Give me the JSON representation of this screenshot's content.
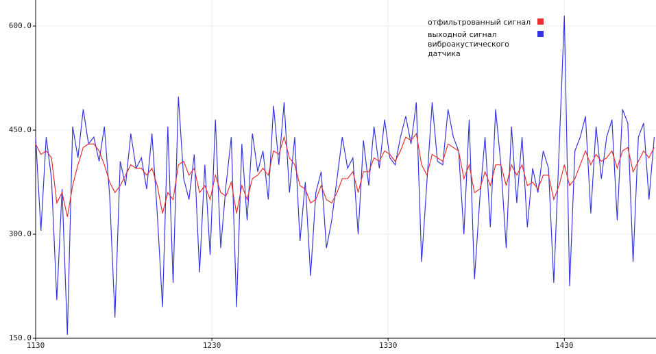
{
  "chart_data": {
    "type": "line",
    "x": [
      1130,
      1133,
      1136,
      1139,
      1142,
      1145,
      1148,
      1151,
      1154,
      1157,
      1160,
      1163,
      1166,
      1169,
      1172,
      1175,
      1178,
      1181,
      1184,
      1187,
      1190,
      1193,
      1196,
      1199,
      1202,
      1205,
      1208,
      1211,
      1214,
      1217,
      1220,
      1223,
      1226,
      1229,
      1232,
      1235,
      1238,
      1241,
      1244,
      1247,
      1250,
      1253,
      1256,
      1259,
      1262,
      1265,
      1268,
      1271,
      1274,
      1277,
      1280,
      1283,
      1286,
      1289,
      1292,
      1295,
      1298,
      1301,
      1304,
      1307,
      1310,
      1313,
      1316,
      1319,
      1322,
      1325,
      1328,
      1331,
      1334,
      1337,
      1340,
      1343,
      1346,
      1349,
      1352,
      1355,
      1358,
      1361,
      1364,
      1367,
      1370,
      1373,
      1376,
      1379,
      1382,
      1385,
      1388,
      1391,
      1394,
      1397,
      1400,
      1403,
      1406,
      1409,
      1412,
      1415,
      1418,
      1421,
      1424,
      1427,
      1430,
      1433,
      1436,
      1439,
      1442,
      1445,
      1448,
      1451,
      1454,
      1457,
      1460,
      1463,
      1466,
      1469,
      1472,
      1475,
      1478,
      1481
    ],
    "series": [
      {
        "name": "выходной сигнал виброакустического датчика",
        "color": "#3535e0",
        "values": [
          440,
          305,
          440,
          380,
          205,
          365,
          155,
          455,
          410,
          480,
          430,
          440,
          405,
          455,
          355,
          180,
          405,
          370,
          445,
          395,
          410,
          365,
          445,
          330,
          195,
          455,
          230,
          498,
          380,
          350,
          415,
          245,
          400,
          270,
          465,
          280,
          370,
          440,
          195,
          430,
          320,
          445,
          390,
          420,
          350,
          485,
          400,
          490,
          360,
          440,
          290,
          375,
          240,
          360,
          390,
          280,
          320,
          380,
          440,
          395,
          410,
          300,
          435,
          370,
          455,
          395,
          465,
          410,
          400,
          440,
          470,
          430,
          490,
          260,
          375,
          490,
          405,
          400,
          480,
          440,
          420,
          300,
          465,
          235,
          350,
          440,
          310,
          480,
          400,
          280,
          455,
          345,
          440,
          310,
          395,
          360,
          420,
          395,
          230,
          420,
          615,
          225,
          420,
          440,
          470,
          330,
          455,
          380,
          440,
          465,
          320,
          480,
          460,
          260,
          440,
          460,
          350,
          440
        ]
      },
      {
        "name": "отфильтрованный сигнал",
        "color": "#e83030",
        "values": [
          430,
          415,
          420,
          410,
          345,
          360,
          325,
          370,
          400,
          425,
          430,
          430,
          420,
          400,
          375,
          360,
          370,
          385,
          400,
          395,
          395,
          385,
          395,
          370,
          330,
          360,
          350,
          400,
          405,
          385,
          395,
          360,
          370,
          350,
          385,
          360,
          355,
          375,
          330,
          370,
          350,
          380,
          385,
          395,
          385,
          420,
          415,
          440,
          410,
          400,
          370,
          365,
          345,
          350,
          370,
          350,
          345,
          360,
          380,
          380,
          390,
          360,
          390,
          390,
          410,
          405,
          420,
          415,
          405,
          420,
          440,
          435,
          445,
          400,
          385,
          415,
          410,
          405,
          430,
          425,
          420,
          380,
          400,
          360,
          365,
          390,
          370,
          400,
          400,
          370,
          400,
          385,
          400,
          370,
          375,
          365,
          385,
          385,
          350,
          370,
          400,
          370,
          380,
          400,
          420,
          400,
          415,
          405,
          410,
          420,
          395,
          420,
          425,
          390,
          405,
          420,
          410,
          425
        ]
      }
    ],
    "xlim": [
      1130,
      1482
    ],
    "ylim": [
      150,
      637.5
    ],
    "xticks": [
      1130,
      1230,
      1330,
      1430
    ],
    "yticks": [
      {
        "value": 150,
        "label": "150.0"
      },
      {
        "value": 300,
        "label": "300.0"
      },
      {
        "value": 450,
        "label": "450.0"
      },
      {
        "value": 600,
        "label": "600.0"
      }
    ],
    "grid": true
  }
}
